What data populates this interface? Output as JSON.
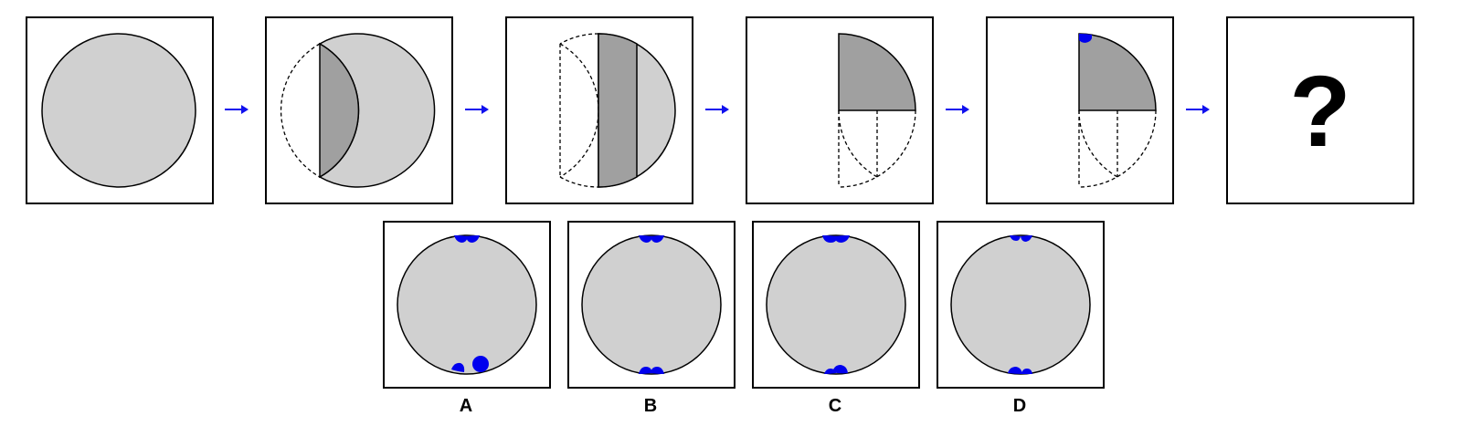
{
  "question_mark": "?",
  "colors": {
    "paper": "#d0d0d0",
    "folded": "#a0a0a0",
    "hole": "#0000ee",
    "arrow": "#1010ee",
    "frame": "#000000",
    "background": "#ffffff"
  },
  "steps": [
    {
      "id": 1,
      "description_icon": "circle-paper-icon"
    },
    {
      "id": 2,
      "description_icon": "fold-left-segment-icon"
    },
    {
      "id": 3,
      "description_icon": "fold-right-segment-icon"
    },
    {
      "id": 4,
      "description_icon": "fold-to-quarter-icon"
    },
    {
      "id": 5,
      "description_icon": "punch-hole-icon"
    }
  ],
  "options": [
    {
      "label": "A"
    },
    {
      "label": "B"
    },
    {
      "label": "C"
    },
    {
      "label": "D"
    }
  ]
}
